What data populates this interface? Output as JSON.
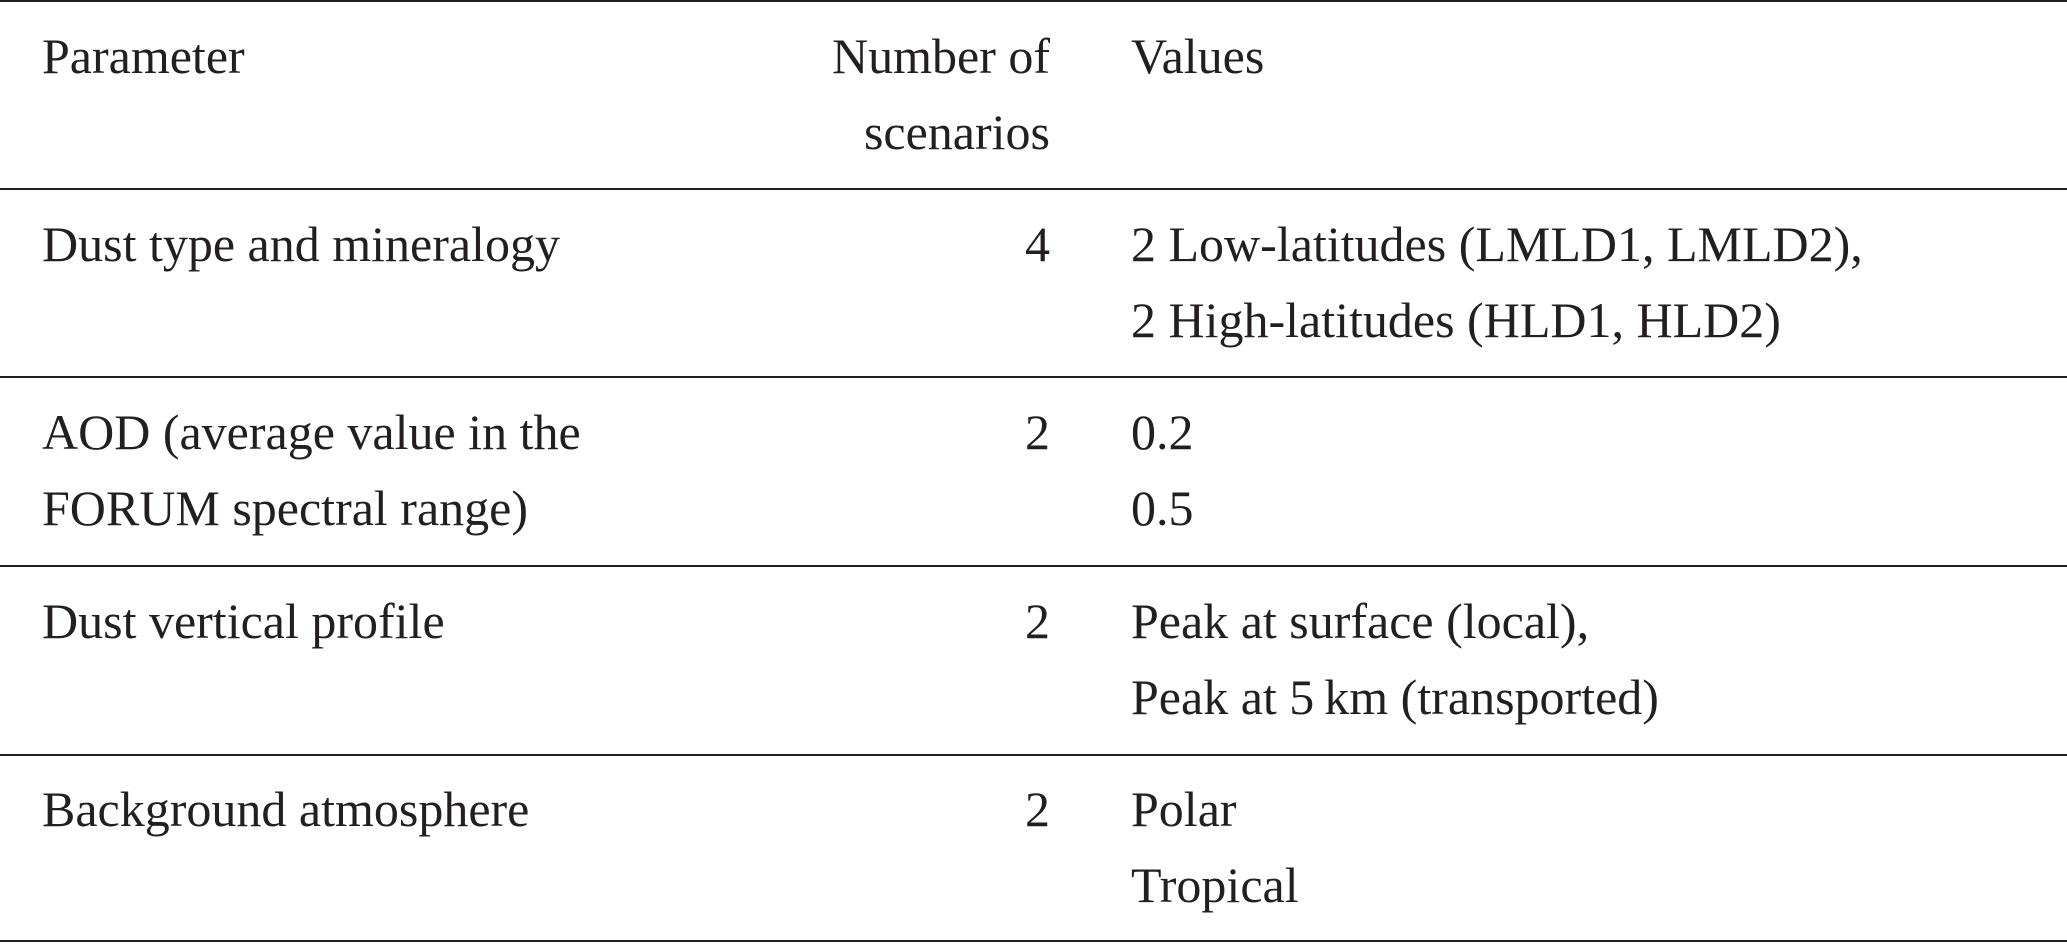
{
  "table": {
    "headers": {
      "parameter": "Parameter",
      "number_line1": "Number of",
      "number_line2": "scenarios",
      "values": "Values"
    },
    "rows": [
      {
        "parameter": [
          "Dust type and mineralogy"
        ],
        "number": "4",
        "values": [
          "2 Low-latitudes (LMLD1, LMLD2),",
          "2 High-latitudes (HLD1, HLD2)"
        ]
      },
      {
        "parameter": [
          "AOD (average value in the",
          "FORUM spectral range)"
        ],
        "number": "2",
        "values": [
          "0.2",
          "0.5"
        ]
      },
      {
        "parameter": [
          "Dust vertical profile"
        ],
        "number": "2",
        "values": [
          "Peak at surface (local),",
          "Peak at 5 km (transported)"
        ]
      },
      {
        "parameter": [
          "Background atmosphere"
        ],
        "number": "2",
        "values": [
          "Polar",
          "Tropical"
        ]
      }
    ]
  }
}
